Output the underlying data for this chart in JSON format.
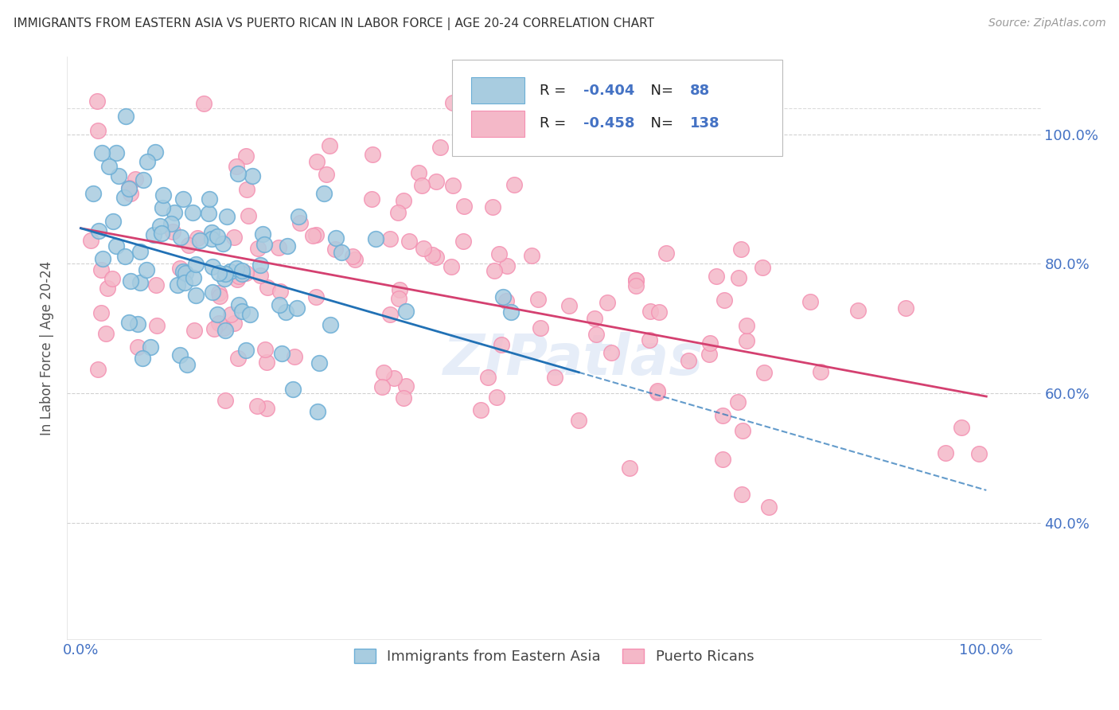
{
  "title": "IMMIGRANTS FROM EASTERN ASIA VS PUERTO RICAN IN LABOR FORCE | AGE 20-24 CORRELATION CHART",
  "source": "Source: ZipAtlas.com",
  "ylabel": "In Labor Force | Age 20-24",
  "blue_R": "-0.404",
  "blue_N": "88",
  "pink_R": "-0.458",
  "pink_N": "138",
  "blue_color": "#a8cce0",
  "pink_color": "#f4b8c8",
  "blue_edge_color": "#6baed6",
  "pink_edge_color": "#f48fb1",
  "blue_line_color": "#2171b5",
  "pink_line_color": "#d44070",
  "legend_label_blue": "Immigrants from Eastern Asia",
  "legend_label_pink": "Puerto Ricans",
  "watermark_text": "ZIPatlas",
  "bg_color": "#ffffff",
  "grid_color": "#cccccc",
  "axis_color": "#4472c4",
  "title_color": "#333333",
  "xlim": [
    -0.015,
    1.06
  ],
  "ylim": [
    0.22,
    1.12
  ],
  "yticks": [
    0.4,
    0.6,
    0.8,
    1.0
  ],
  "ytick_labels": [
    "40.0%",
    "60.0%",
    "80.0%",
    "100.0%"
  ],
  "xticks": [
    0.0,
    1.0
  ],
  "xtick_labels": [
    "0.0%",
    "100.0%"
  ],
  "blue_line_x": [
    0.0,
    1.0
  ],
  "blue_line_y": [
    0.855,
    0.45
  ],
  "pink_line_x": [
    0.0,
    1.0
  ],
  "pink_line_y": [
    0.855,
    0.595
  ]
}
